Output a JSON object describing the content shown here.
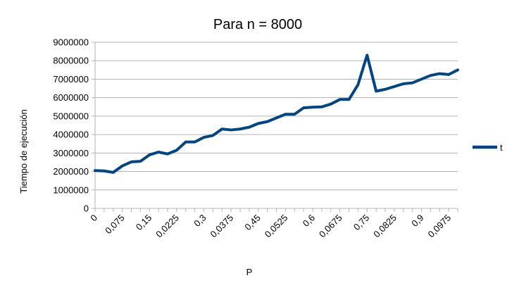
{
  "chart_data": {
    "type": "line",
    "title": "Para n = 8000",
    "xlabel": "P",
    "ylabel": "Tiempo de ejecución",
    "ylim": [
      0,
      9000000
    ],
    "y_ticks": [
      0,
      1000000,
      2000000,
      3000000,
      4000000,
      5000000,
      6000000,
      7000000,
      8000000,
      9000000
    ],
    "y_tick_labels": [
      "0",
      "1000000",
      "2000000",
      "3000000",
      "4000000",
      "5000000",
      "6000000",
      "7000000",
      "8000000",
      "9000000"
    ],
    "x_tick_labels": [
      "0",
      "0,075",
      "0,15",
      "0,0225",
      "0,3",
      "0,0375",
      "0,45",
      "0,0525",
      "0,6",
      "0,0675",
      "0,75",
      "0,0825",
      "0,9",
      "0,0975"
    ],
    "grid": true,
    "legend_position": "right",
    "series": [
      {
        "name": "t",
        "color": "#004586",
        "values": [
          2050000,
          2030000,
          1950000,
          2300000,
          2520000,
          2550000,
          2900000,
          3050000,
          2950000,
          3150000,
          3600000,
          3600000,
          3850000,
          3950000,
          4300000,
          4250000,
          4300000,
          4400000,
          4600000,
          4700000,
          4900000,
          5100000,
          5100000,
          5450000,
          5480000,
          5500000,
          5650000,
          5900000,
          5900000,
          6700000,
          8300000,
          6350000,
          6450000,
          6600000,
          6750000,
          6800000,
          7000000,
          7200000,
          7300000,
          7250000,
          7500000
        ]
      }
    ]
  }
}
